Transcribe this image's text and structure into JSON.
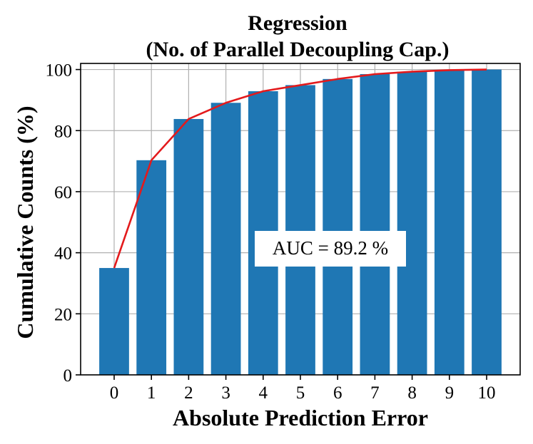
{
  "chart_data": {
    "type": "bar",
    "title_line1": "Regression",
    "title_line2": "(No. of Parallel Decoupling Cap.)",
    "xlabel": "Absolute Prediction Error",
    "ylabel": "Cumulative Counts (%)",
    "categories": [
      "0",
      "1",
      "2",
      "3",
      "4",
      "5",
      "6",
      "7",
      "8",
      "9",
      "10"
    ],
    "x": [
      0,
      1,
      2,
      3,
      4,
      5,
      6,
      7,
      8,
      9,
      10
    ],
    "values": [
      35,
      70.3,
      83.8,
      89.1,
      92.9,
      94.9,
      96.9,
      98.5,
      99.3,
      99.8,
      100
    ],
    "line_values": [
      35,
      70.3,
      83.8,
      89.1,
      92.9,
      94.9,
      96.9,
      98.5,
      99.3,
      99.8,
      100
    ],
    "yticks": [
      0,
      20,
      40,
      60,
      80,
      100
    ],
    "ylim": [
      0,
      102
    ],
    "xlim": [
      -0.9,
      10.9
    ],
    "grid": true,
    "bar_color": "#1f77b4",
    "line_color": "#e31a1c",
    "annotation": "AUC = 89.2 %"
  }
}
